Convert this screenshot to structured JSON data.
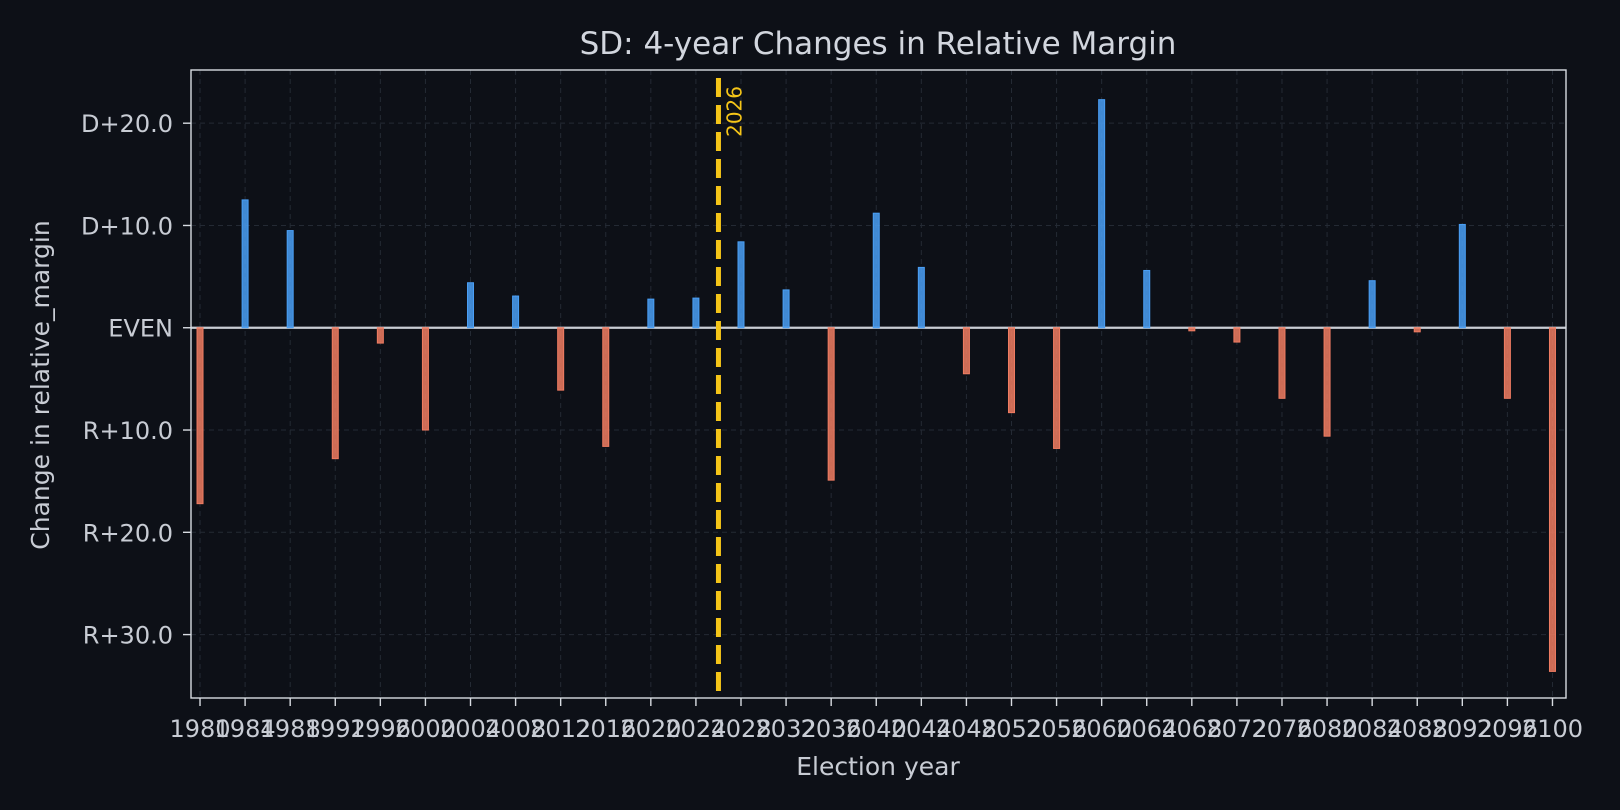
{
  "chart_data": {
    "type": "bar",
    "title": "SD: 4-year Changes in Relative Margin",
    "xlabel": "Election year",
    "ylabel": "Change in relative_margin",
    "x": [
      1980,
      1984,
      1988,
      1992,
      1996,
      2000,
      2004,
      2008,
      2012,
      2016,
      2020,
      2024,
      2028,
      2032,
      2036,
      2040,
      2044,
      2048,
      2052,
      2056,
      2060,
      2064,
      2068,
      2072,
      2076,
      2080,
      2084,
      2088,
      2092,
      2096,
      2100
    ],
    "values": [
      -17.2,
      12.5,
      9.5,
      -12.8,
      -1.5,
      -10.0,
      4.4,
      3.1,
      -6.1,
      -11.6,
      2.8,
      2.9,
      8.4,
      3.7,
      -14.9,
      11.2,
      5.9,
      -4.5,
      -8.3,
      -11.8,
      22.3,
      5.6,
      -0.3,
      -1.4,
      -6.9,
      -10.6,
      4.6,
      -0.4,
      10.1,
      -6.9,
      -33.6
    ],
    "ylim": [
      -36.2,
      25.2
    ],
    "xlim": [
      1979.2,
      2101.2
    ],
    "yticks": [
      20,
      10,
      0,
      -10,
      -20,
      -30
    ],
    "ytick_labels": [
      "D+20.0",
      "D+10.0",
      "EVEN",
      "R+10.0",
      "R+20.0",
      "R+30.0"
    ],
    "xtick_labels": [
      "1980",
      "1984",
      "1988",
      "1992",
      "1996",
      "2000",
      "2004",
      "2008",
      "2012",
      "2016",
      "2020",
      "2024",
      "2028",
      "2032",
      "2036",
      "2040",
      "2044",
      "2048",
      "2052",
      "2056",
      "2060",
      "2064",
      "2068",
      "2072",
      "2076",
      "2080",
      "2084",
      "2088",
      "2092",
      "2096",
      "2100"
    ],
    "marker": {
      "x": 2026,
      "label": "2026",
      "color": "#f5c518"
    },
    "colors": {
      "positive": "#4a9ff5",
      "negative": "#f07c62",
      "background": "#0d1017"
    },
    "grid": true,
    "legend": "none"
  }
}
